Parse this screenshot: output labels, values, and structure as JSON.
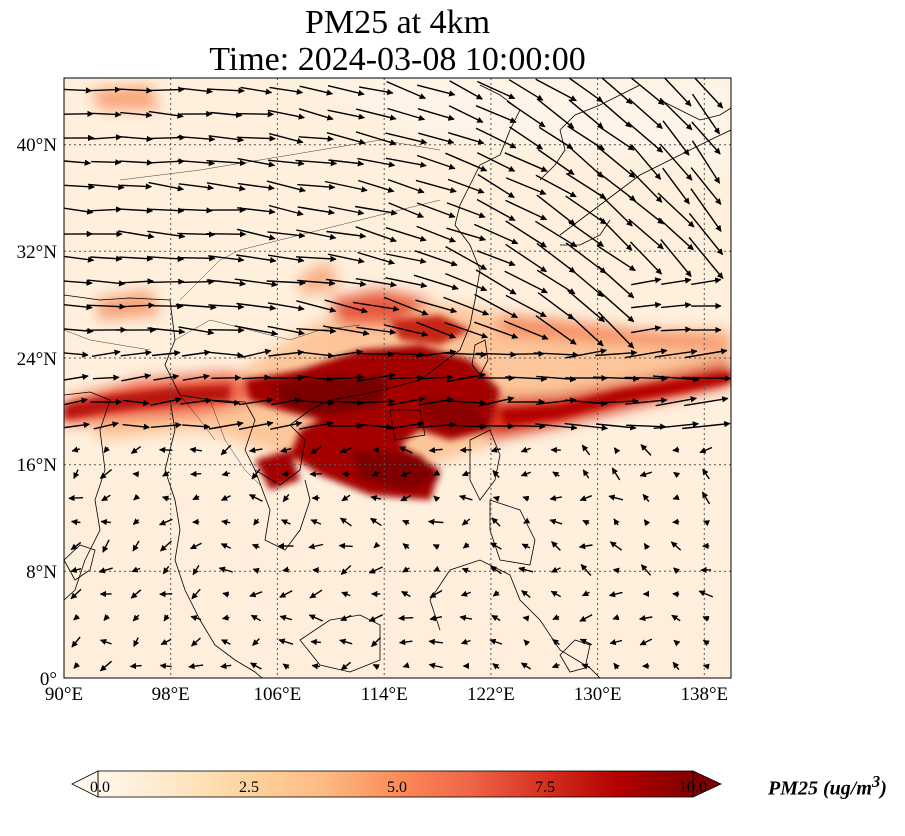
{
  "title": {
    "line1": "PM25 at 4km",
    "line2": "Time: 2024-03-08 10:00:00"
  },
  "map": {
    "extent": {
      "lon_min": 90,
      "lon_max": 140,
      "lat_min": 0,
      "lat_max": 45
    },
    "lat_ticks": [
      {
        "value": 0,
        "label": "0°"
      },
      {
        "value": 8,
        "label": "8°N"
      },
      {
        "value": 16,
        "label": "16°N"
      },
      {
        "value": 24,
        "label": "24°N"
      },
      {
        "value": 32,
        "label": "32°N"
      },
      {
        "value": 40,
        "label": "40°N"
      }
    ],
    "lon_ticks": [
      {
        "value": 90,
        "label": "90°E"
      },
      {
        "value": 98,
        "label": "98°E"
      },
      {
        "value": 106,
        "label": "106°E"
      },
      {
        "value": 114,
        "label": "114°E"
      },
      {
        "value": 122,
        "label": "122°E"
      },
      {
        "value": 130,
        "label": "130°E"
      },
      {
        "value": 138,
        "label": "138°E"
      }
    ],
    "gridlines": true,
    "field_variable": "PM25",
    "wind_vectors": "shown"
  },
  "colorbar": {
    "label": "PM25 (ug/m",
    "label_sup": "3",
    "label_close": ")",
    "min": 0,
    "max": 10,
    "ticks": [
      "0.0",
      "2.5",
      "5.0",
      "7.5",
      "10.0"
    ],
    "extend": "both",
    "colormap": "OrRd",
    "colors": [
      "#fff7ec",
      "#fee8c8",
      "#fdd49e",
      "#fdbb84",
      "#fc8d59",
      "#ef6548",
      "#d7301f",
      "#b30000",
      "#7f0000"
    ]
  }
}
